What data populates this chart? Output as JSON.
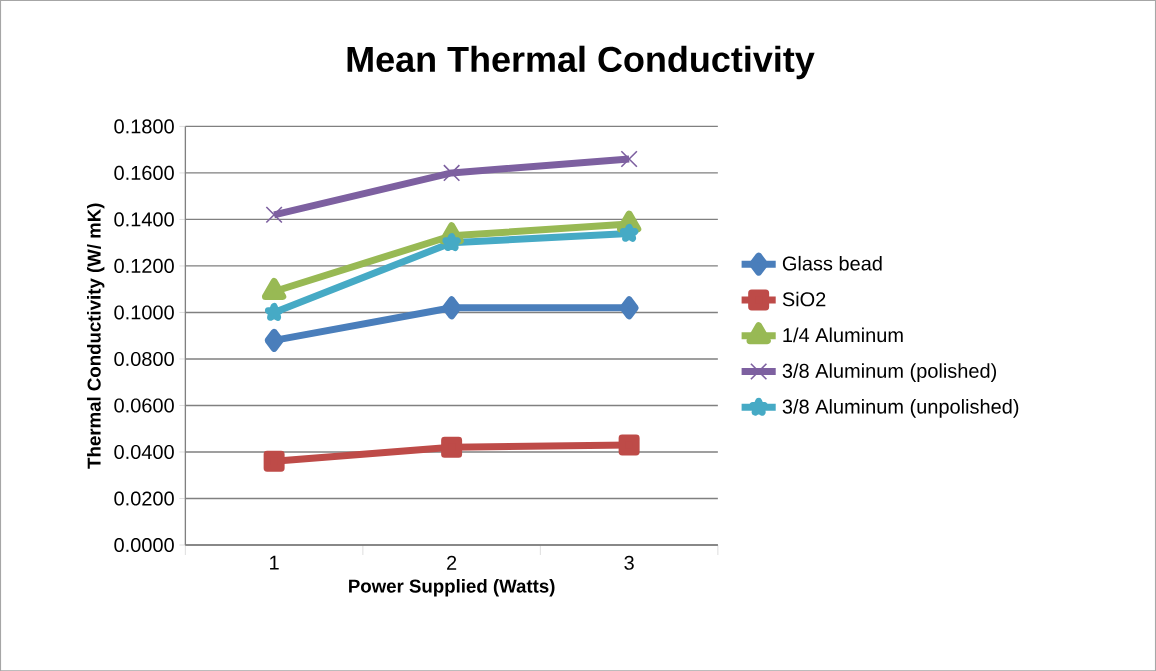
{
  "chart_data": {
    "type": "line",
    "title": "Mean Thermal Conductivity",
    "xlabel": "Power Supplied (Watts)",
    "ylabel": "Thermal Conductivity (W/ mK)",
    "categories": [
      "1",
      "2",
      "3"
    ],
    "series": [
      {
        "name": "Glass bead",
        "color": "#4a7ebb",
        "marker": "diamond",
        "values": [
          0.088,
          0.102,
          0.102
        ]
      },
      {
        "name": "SiO2",
        "color": "#be4b48",
        "marker": "square",
        "values": [
          0.036,
          0.042,
          0.043
        ]
      },
      {
        "name": "1/4 Aluminum",
        "color": "#98b954",
        "marker": "triangle",
        "values": [
          0.109,
          0.133,
          0.138
        ]
      },
      {
        "name": "3/8 Aluminum (polished)",
        "color": "#7d60a0",
        "marker": "cross",
        "values": [
          0.142,
          0.16,
          0.166
        ]
      },
      {
        "name": "3/8 Aluminum (unpolished)",
        "color": "#46aac5",
        "marker": "star",
        "values": [
          0.1,
          0.13,
          0.134
        ]
      }
    ],
    "ylim": [
      0,
      0.18
    ],
    "yticks": [
      {
        "value": 0,
        "label": "0.0000"
      },
      {
        "value": 0.02,
        "label": "0.0200"
      },
      {
        "value": 0.04,
        "label": "0.0400"
      },
      {
        "value": 0.06,
        "label": "0.0600"
      },
      {
        "value": 0.08,
        "label": "0.0800"
      },
      {
        "value": 0.1,
        "label": "0.1000"
      },
      {
        "value": 0.12,
        "label": "0.1200"
      },
      {
        "value": 0.14,
        "label": "0.1400"
      },
      {
        "value": 0.16,
        "label": "0.1600"
      },
      {
        "value": 0.18,
        "label": "0.1800"
      }
    ],
    "grid": "y",
    "legend": "right",
    "line_style": "solid"
  }
}
